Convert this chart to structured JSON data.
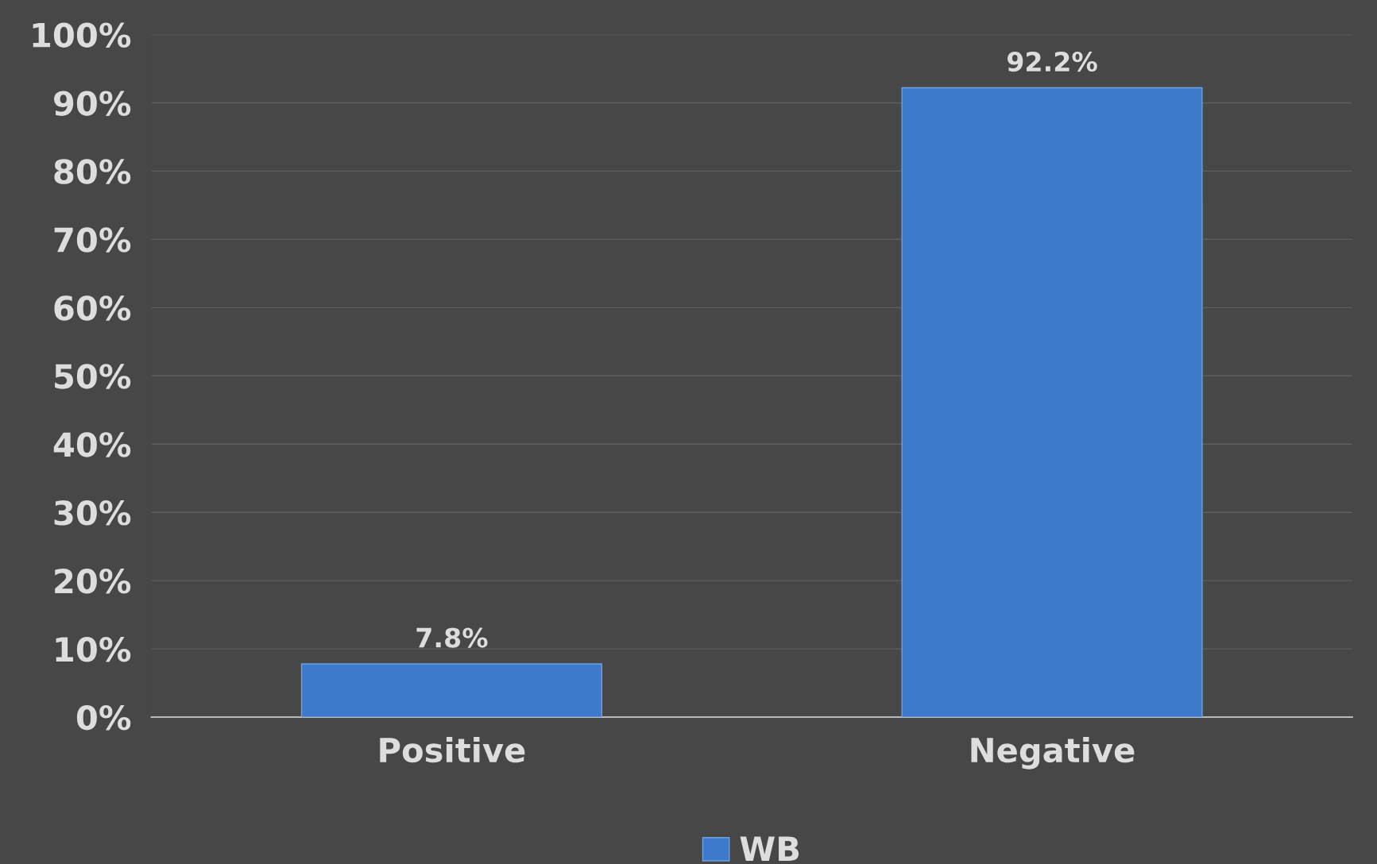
{
  "chart_data": {
    "type": "bar",
    "categories": [
      "Positive",
      "Negative"
    ],
    "series": [
      {
        "name": "WB",
        "color": "#3d7acc",
        "values": [
          7.8,
          92.2
        ],
        "value_labels": [
          "7.8%",
          "92.2%"
        ]
      }
    ],
    "ylim": [
      0,
      100
    ],
    "yticks": [
      {
        "value": 0,
        "label": "0%"
      },
      {
        "value": 10,
        "label": "10%"
      },
      {
        "value": 20,
        "label": "20%"
      },
      {
        "value": 30,
        "label": "30%"
      },
      {
        "value": 40,
        "label": "40%"
      },
      {
        "value": 50,
        "label": "50%"
      },
      {
        "value": 60,
        "label": "60%"
      },
      {
        "value": 70,
        "label": "70%"
      },
      {
        "value": 80,
        "label": "80%"
      },
      {
        "value": 90,
        "label": "90%"
      },
      {
        "value": 100,
        "label": "100%"
      }
    ],
    "grid": "y",
    "legend": "bottom"
  }
}
